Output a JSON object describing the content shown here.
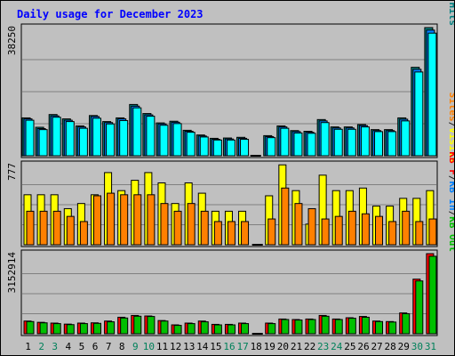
{
  "chart_data": {
    "type": "bar",
    "title": "Daily usage for December 2023",
    "categories": [
      "1",
      "2",
      "3",
      "4",
      "5",
      "6",
      "7",
      "8",
      "9",
      "10",
      "11",
      "12",
      "13",
      "14",
      "15",
      "16",
      "17",
      "18",
      "19",
      "20",
      "21",
      "22",
      "23",
      "24",
      "25",
      "26",
      "27",
      "28",
      "29",
      "30",
      "31"
    ],
    "weekend_days": [
      "2",
      "3",
      "9",
      "10",
      "16",
      "17",
      "23",
      "24",
      "30",
      "31"
    ],
    "panels": [
      {
        "id": "hits-files-pages",
        "scale_label": "38250",
        "ylim": [
          0,
          38250
        ],
        "legend": [
          {
            "text": "Pages",
            "color": "#00ffff"
          },
          {
            "text": "/",
            "color": "#222222"
          },
          {
            "text": "Files",
            "color": "#0080ff"
          },
          {
            "text": "/",
            "color": "#222222"
          },
          {
            "text": "Hits",
            "color": "#008080"
          }
        ],
        "series": [
          {
            "name": "Hits",
            "color": "#008080",
            "values": [
              11300,
              8500,
              12300,
              11000,
              8900,
              12000,
              10200,
              11300,
              15300,
              12600,
              9800,
              10300,
              7600,
              6200,
              5200,
              5300,
              5500,
              0,
              6000,
              8900,
              7500,
              7300,
              10800,
              8600,
              8600,
              9300,
              7800,
              7800,
              11300,
              26400,
              38250
            ]
          },
          {
            "name": "Files",
            "color": "#0080ff",
            "values": [
              11000,
              8100,
              11900,
              10600,
              8600,
              11700,
              9900,
              11000,
              14800,
              12200,
              9500,
              10000,
              7300,
              5900,
              4900,
              5000,
              5200,
              0,
              5700,
              8600,
              7200,
              7000,
              10400,
              8300,
              8300,
              9000,
              7500,
              7500,
              10900,
              25800,
              37500
            ]
          },
          {
            "name": "Pages",
            "color": "#00ffff",
            "values": [
              10600,
              7800,
              11500,
              10200,
              8200,
              11200,
              9500,
              10500,
              14300,
              11800,
              9100,
              9600,
              7000,
              5600,
              4700,
              4700,
              4900,
              0,
              5400,
              8200,
              6800,
              6700,
              9900,
              7900,
              7900,
              8600,
              7200,
              7200,
              10400,
              25000,
              36600
            ]
          }
        ]
      },
      {
        "id": "visits-sites",
        "scale_label": "777",
        "ylim": [
          0,
          777
        ],
        "legend": [
          {
            "text": "Sites",
            "color": "#ff8000"
          },
          {
            "text": "/",
            "color": "#222222"
          },
          {
            "text": "Visits",
            "color": "#ffff00"
          }
        ],
        "series": [
          {
            "name": "Visits",
            "color": "#ffff00",
            "values": [
              485,
              485,
              485,
              350,
              400,
              485,
              700,
              525,
              625,
              700,
              600,
              400,
              600,
              500,
              325,
              325,
              325,
              0,
              475,
              775,
              525,
              200,
              675,
              525,
              525,
              550,
              375,
              375,
              450,
              450,
              525
            ]
          },
          {
            "name": "Sites",
            "color": "#ff8000",
            "values": [
              325,
              325,
              325,
              275,
              225,
              475,
              500,
              485,
              485,
              485,
              400,
              325,
              400,
              325,
              225,
              225,
              225,
              0,
              250,
              550,
              400,
              350,
              250,
              275,
              325,
              300,
              275,
              225,
              325,
              225,
              250
            ]
          }
        ]
      },
      {
        "id": "kbf-kbin-kbout",
        "scale_label": "3152914",
        "ylim": [
          0,
          3152914
        ],
        "legend": [
          {
            "text": "KB F",
            "color": "#ff0000"
          },
          {
            "text": "/",
            "color": "#222222"
          },
          {
            "text": "KB In",
            "color": "#0080ff"
          },
          {
            "text": "/",
            "color": "#222222"
          },
          {
            "text": "KB Out",
            "color": "#00c000"
          }
        ],
        "series": [
          {
            "name": "KB F",
            "color": "#ff0000",
            "values": [
              500000,
              450000,
              420000,
              380000,
              420000,
              430000,
              500000,
              650000,
              720000,
              700000,
              520000,
              350000,
              420000,
              500000,
              370000,
              370000,
              420000,
              0,
              420000,
              580000,
              560000,
              580000,
              720000,
              580000,
              630000,
              680000,
              500000,
              480000,
              820000,
              2150000,
              3152914
            ]
          },
          {
            "name": "KB Out",
            "color": "#00c000",
            "values": [
              480000,
              430000,
              400000,
              360000,
              400000,
              410000,
              470000,
              620000,
              690000,
              680000,
              500000,
              330000,
              400000,
              470000,
              350000,
              350000,
              400000,
              0,
              400000,
              560000,
              540000,
              560000,
              690000,
              560000,
              610000,
              650000,
              480000,
              460000,
              790000,
              2080000,
              3050000
            ]
          }
        ]
      }
    ]
  }
}
